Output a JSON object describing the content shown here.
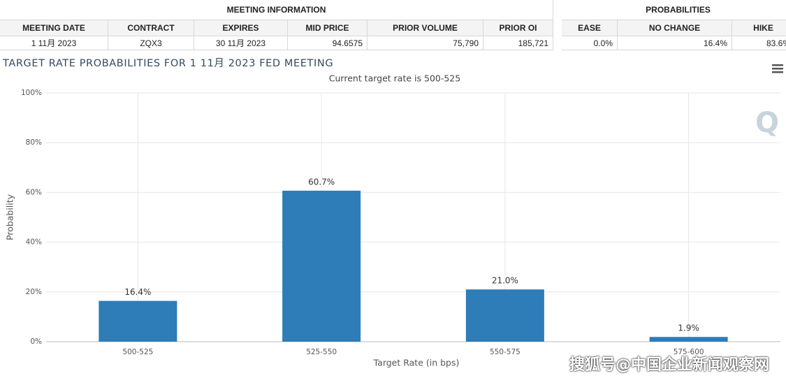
{
  "meeting_info": {
    "title": "MEETING INFORMATION",
    "columns": [
      "MEETING DATE",
      "CONTRACT",
      "EXPIRES",
      "MID PRICE",
      "PRIOR VOLUME",
      "PRIOR OI"
    ],
    "row": [
      "1 11月 2023",
      "ZQX3",
      "30 11月 2023",
      "94.6575",
      "75,790",
      "185,721"
    ]
  },
  "probabilities": {
    "title": "PROBABILITIES",
    "columns": [
      "EASE",
      "NO CHANGE",
      "HIKE"
    ],
    "row": [
      "0.0%",
      "16.4%",
      "83.6%"
    ]
  },
  "chart_data": {
    "type": "bar",
    "title": "TARGET RATE PROBABILITIES FOR 1 11月 2023 FED MEETING",
    "subtitle": "Current target rate is 500-525",
    "x_label": "Target Rate (in bps)",
    "y_label": "Probability",
    "categories": [
      "500-525",
      "525-550",
      "550-575",
      "575-600"
    ],
    "values": [
      16.4,
      60.7,
      21.0,
      1.9
    ],
    "value_labels": [
      "16.4%",
      "60.7%",
      "21.0%",
      "1.9%"
    ],
    "color": "#2e7cb8",
    "ylim": [
      0,
      100
    ],
    "yticks": [
      {
        "value": 0,
        "label": "0%"
      },
      {
        "value": 20,
        "label": "20%"
      },
      {
        "value": 40,
        "label": "40%"
      },
      {
        "value": 60,
        "label": "60%"
      },
      {
        "value": 80,
        "label": "80%"
      },
      {
        "value": 100,
        "label": "100%"
      }
    ],
    "grid": true
  },
  "watermark": "搜狐号@中国企业新闻观察网"
}
